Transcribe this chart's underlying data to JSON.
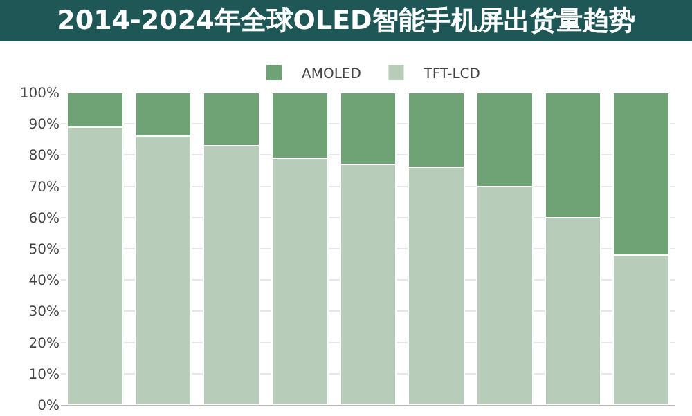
{
  "chart_data": {
    "type": "bar",
    "title": "2014-2024年全球OLED智能手机屏出货量趋势",
    "categories": [
      null,
      null,
      null,
      null,
      null,
      null,
      null,
      null,
      null
    ],
    "stacked": true,
    "series": [
      {
        "name": "TFT-LCD",
        "color": "#b7cdb9",
        "values": [
          89,
          86,
          83,
          79,
          77,
          76,
          70,
          60,
          48
        ]
      },
      {
        "name": "AMOLED",
        "color": "#6fa275",
        "values": [
          11,
          14,
          17,
          21,
          23,
          24,
          30,
          40,
          52
        ]
      }
    ],
    "ylim": [
      0,
      100
    ],
    "yticks": [
      {
        "value": 0,
        "label": "0%"
      },
      {
        "value": 10,
        "label": "10%"
      },
      {
        "value": 20,
        "label": "20%"
      },
      {
        "value": 30,
        "label": "30%"
      },
      {
        "value": 40,
        "label": "40%"
      },
      {
        "value": 50,
        "label": "50%"
      },
      {
        "value": 60,
        "label": "60%"
      },
      {
        "value": 70,
        "label": "70%"
      },
      {
        "value": 80,
        "label": "80%"
      },
      {
        "value": 90,
        "label": "90%"
      },
      {
        "value": 100,
        "label": "100%"
      }
    ],
    "grid": "y",
    "legend": "top"
  }
}
